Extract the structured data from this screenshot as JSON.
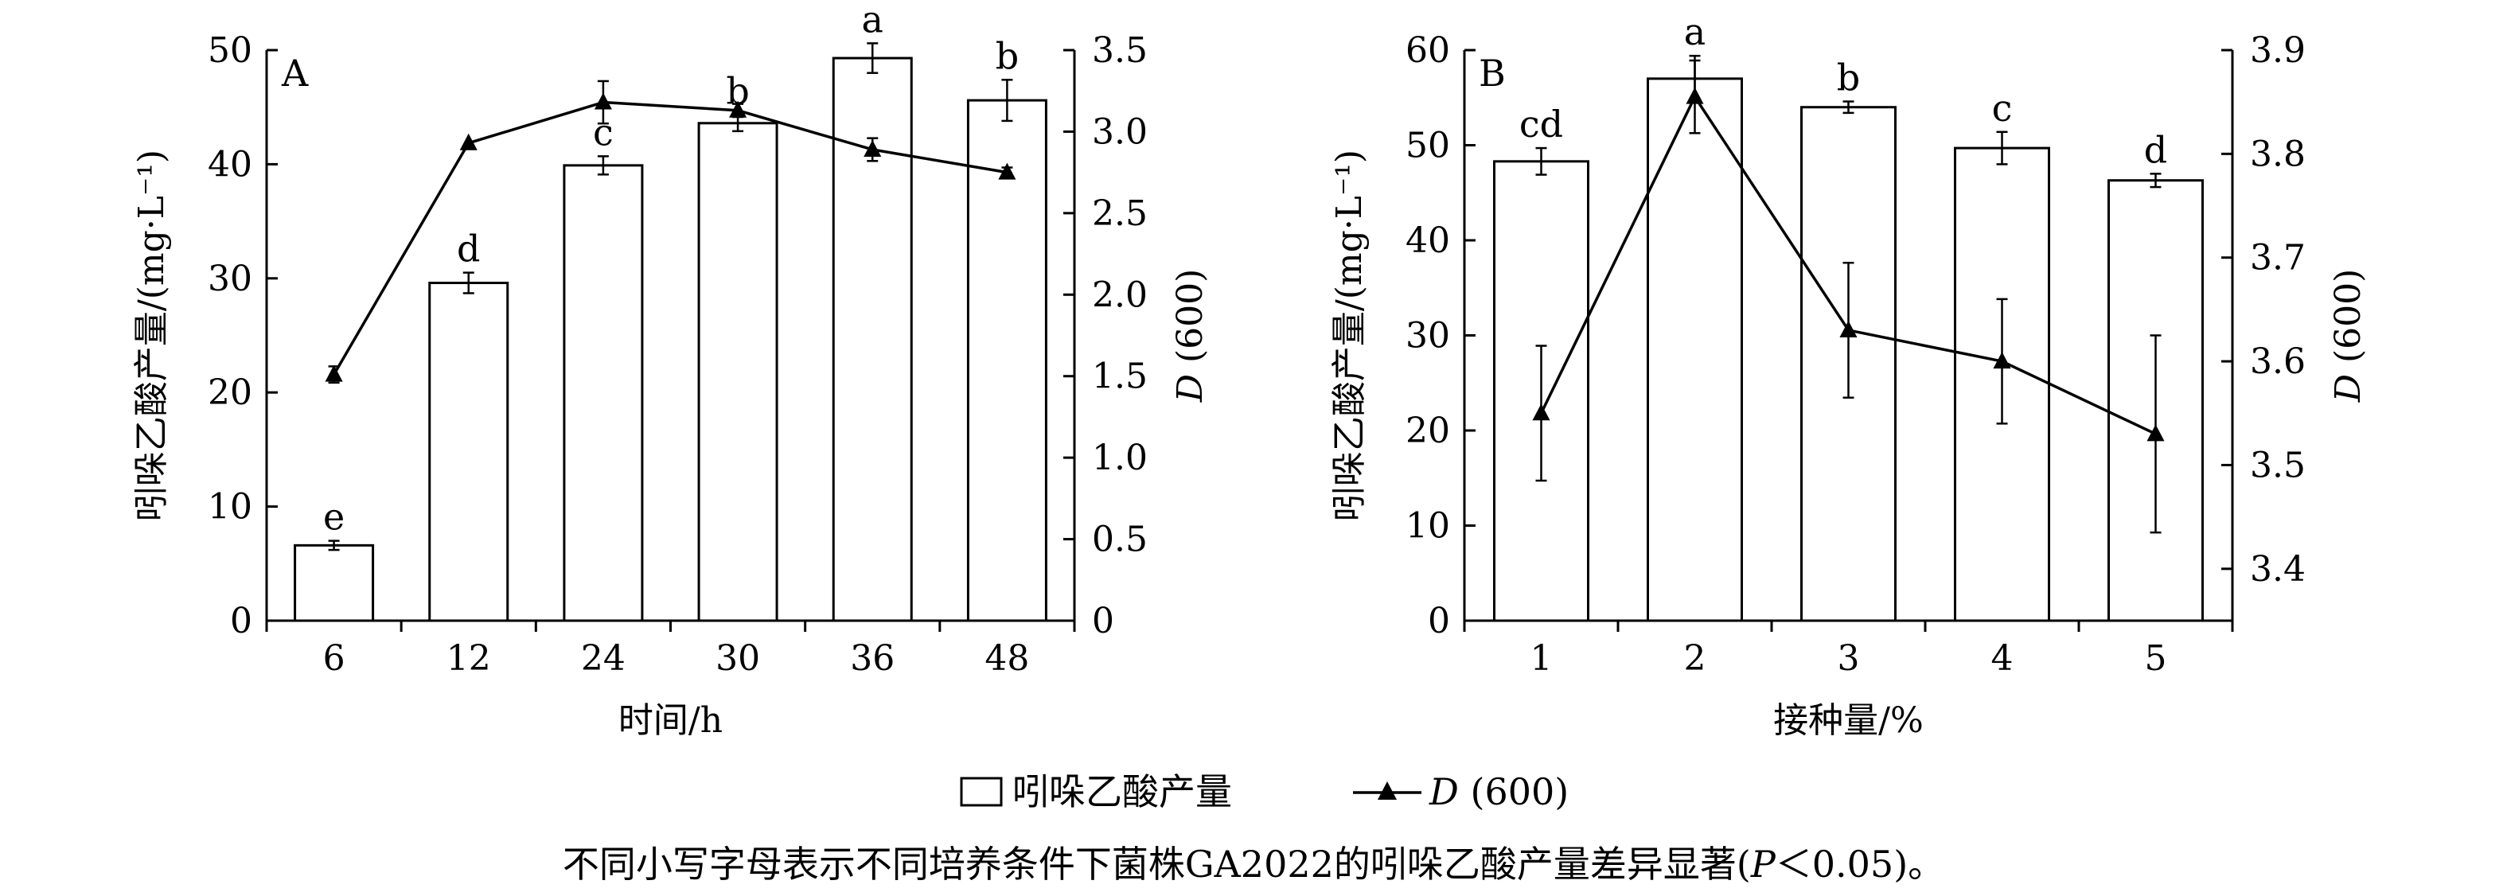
{
  "chart_data": [
    {
      "type": "bar+line",
      "panel_label": "A",
      "xlabel": "时间/h",
      "ylabel": "吲哚乙酸产量/(mg·L⁻¹)",
      "y2label": "D (600)",
      "categories": [
        "6",
        "12",
        "24",
        "30",
        "36",
        "48"
      ],
      "ylim": [
        0,
        50
      ],
      "yticks": [
        "0",
        "10",
        "20",
        "30",
        "40",
        "50"
      ],
      "y2lim": [
        0,
        3.5
      ],
      "y2ticks": [
        "0",
        "0.5",
        "1.0",
        "1.5",
        "2.0",
        "2.5",
        "3.0",
        "3.5"
      ],
      "series": [
        {
          "name": "吲哚乙酸产量",
          "kind": "bar",
          "axis": "left",
          "values": [
            6.6,
            29.6,
            39.9,
            43.6,
            49.3,
            45.6
          ],
          "errors": [
            0.4,
            0.9,
            0.8,
            0.7,
            1.3,
            1.8
          ],
          "significance": [
            "e",
            "d",
            "c",
            "b",
            "a",
            "b"
          ]
        },
        {
          "name": "D (600)",
          "kind": "line",
          "marker": "triangle",
          "axis": "right",
          "values": [
            1.51,
            2.93,
            3.18,
            3.13,
            2.89,
            2.75
          ],
          "errors": [
            0.05,
            0.0,
            0.13,
            0.04,
            0.07,
            0.03
          ]
        }
      ]
    },
    {
      "type": "bar+line",
      "panel_label": "B",
      "xlabel": "接种量/%",
      "ylabel": "吲哚乙酸产量/(mg·L⁻¹)",
      "y2label": "D (600)",
      "categories": [
        "1",
        "2",
        "3",
        "4",
        "5"
      ],
      "ylim": [
        0,
        60
      ],
      "yticks": [
        "0",
        "10",
        "20",
        "30",
        "40",
        "50",
        "60"
      ],
      "y2lim": [
        3.35,
        3.9
      ],
      "y2ticks": [
        "3.4",
        "3.5",
        "3.6",
        "3.7",
        "3.8",
        "3.9"
      ],
      "series": [
        {
          "name": "吲哚乙酸产量",
          "kind": "bar",
          "axis": "left",
          "values": [
            48.3,
            57.0,
            54.0,
            49.7,
            46.3
          ],
          "errors": [
            1.4,
            2.4,
            0.6,
            1.7,
            0.7
          ],
          "significance": [
            "cd",
            "a",
            "b",
            "c",
            "d"
          ]
        },
        {
          "name": "D (600)",
          "kind": "line",
          "marker": "triangle",
          "axis": "right",
          "values": [
            3.55,
            3.855,
            3.63,
            3.6,
            3.53
          ],
          "errors": [
            0.065,
            0.035,
            0.065,
            0.06,
            0.095
          ]
        }
      ]
    }
  ],
  "legend": {
    "bar_label": "吲哚乙酸产量",
    "line_label_italic": "D",
    "line_label_rest": " (600)"
  },
  "caption": {
    "text_before": "不同小写字母表示不同培养条件下菌株GA2022的吲哚乙酸产量差异显著(",
    "italic": "P",
    "text_after": "＜0.05)。"
  }
}
